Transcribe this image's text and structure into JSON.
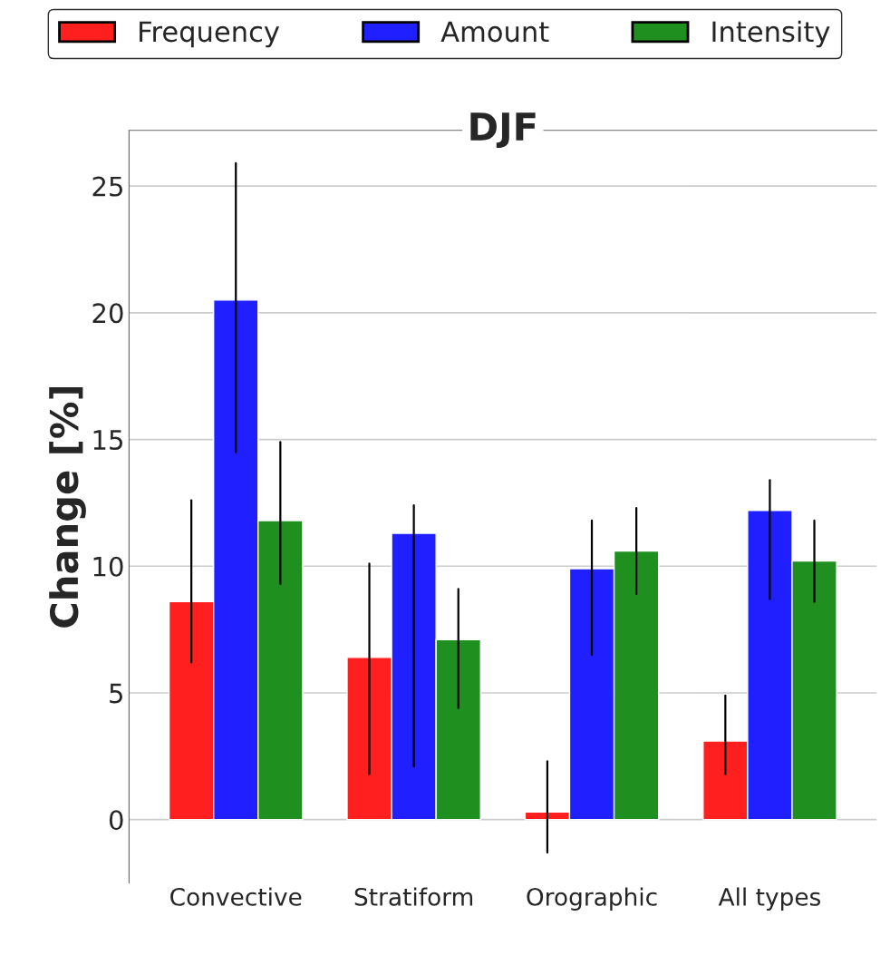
{
  "chart_data": {
    "type": "bar",
    "title": "DJF",
    "ylabel": "Change [%]",
    "categories": [
      "Convective",
      "Stratiform",
      "Orographic",
      "All types"
    ],
    "series": [
      {
        "name": "Frequency",
        "color": "#ff1f1f",
        "values": [
          8.6,
          6.4,
          0.3,
          3.1
        ],
        "errors": [
          [
            6.2,
            12.6
          ],
          [
            1.8,
            10.1
          ],
          [
            -1.3,
            2.3
          ],
          [
            1.8,
            4.9
          ]
        ]
      },
      {
        "name": "Amount",
        "color": "#1f1fff",
        "values": [
          20.5,
          11.3,
          9.9,
          12.2
        ],
        "errors": [
          [
            14.5,
            25.9
          ],
          [
            2.1,
            12.4
          ],
          [
            6.5,
            11.8
          ],
          [
            8.7,
            13.4
          ]
        ]
      },
      {
        "name": "Intensity",
        "color": "#1f8f1f",
        "values": [
          11.8,
          7.1,
          10.6,
          10.2
        ],
        "errors": [
          [
            9.3,
            14.9
          ],
          [
            4.4,
            9.1
          ],
          [
            8.9,
            12.3
          ],
          [
            8.6,
            11.8
          ]
        ]
      }
    ],
    "ylim": [
      -2.5,
      27.2
    ],
    "yticks": [
      0,
      5,
      10,
      15,
      20,
      25
    ],
    "grid": "y",
    "legend": "top"
  }
}
